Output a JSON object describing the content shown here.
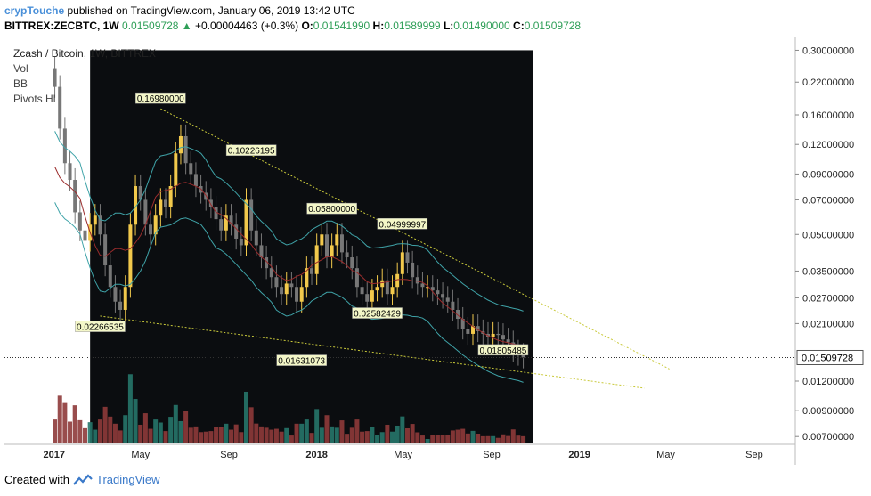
{
  "header": {
    "user": "crypTouche",
    "published": "published on TradingView.com, January 06, 2019 13:42 UTC",
    "symbol": "BITTREX:ZECBTC, 1W",
    "last": "0.01509728",
    "change_arrow": "▲",
    "change": "+0.00004463 (+0.3%)",
    "ohlc": [
      {
        "k": "O:",
        "v": "0.01541990"
      },
      {
        "k": "H:",
        "v": "0.01589999"
      },
      {
        "k": "L:",
        "v": "0.01490000"
      },
      {
        "k": "C:",
        "v": "0.01509728"
      }
    ]
  },
  "legend": {
    "title": "Zcash / Bitcoin, 1W, BITTREX",
    "items": [
      "Vol",
      "BB",
      "Pivots HL"
    ]
  },
  "footer": {
    "created": "Created with",
    "brand": "TradingView"
  },
  "colors": {
    "up": "#f2c94c",
    "down": "#777777",
    "vol_up": "#26756a",
    "vol_down": "#8e3a3a",
    "bb_upper": "#3fa3a8",
    "bb_mid": "#9b2c2c",
    "trend": "#c9c93a",
    "bg_dark": "#000000"
  },
  "chart_data": {
    "type": "candlestick",
    "y_scale": "log",
    "y_ticks": [
      "0.30000000",
      "0.22000000",
      "0.16000000",
      "0.12000000",
      "0.09000000",
      "0.07000000",
      "0.05000000",
      "0.03500000",
      "0.02700000",
      "0.02100000",
      "0.01200000",
      "0.00900000",
      "0.00700000"
    ],
    "y_tick_values": [
      0.3,
      0.22,
      0.16,
      0.12,
      0.09,
      0.07,
      0.05,
      0.035,
      0.027,
      0.021,
      0.012,
      0.009,
      0.007
    ],
    "ylim": [
      0.0066,
      0.34
    ],
    "x_ticks": [
      "2017",
      "May",
      "Sep",
      "2018",
      "May",
      "Sep",
      "2019",
      "May",
      "Sep"
    ],
    "x_tick_dates": [
      "2017-01-01",
      "2017-05-01",
      "2017-09-01",
      "2018-01-01",
      "2018-05-01",
      "2018-09-01",
      "2019-01-01",
      "2019-05-01",
      "2019-09-01"
    ],
    "x_range": [
      "2016-10-24",
      "2019-10-28"
    ],
    "last_price": {
      "value": 0.01509728,
      "label": "0.01509728"
    },
    "pivots": [
      {
        "label": "0.16980000",
        "date": "2017-05-29",
        "value": 0.1698,
        "kind": "high"
      },
      {
        "label": "0.10226195",
        "date": "2017-10-02",
        "value": 0.10226195,
        "kind": "high"
      },
      {
        "label": "0.05800000",
        "date": "2018-01-22",
        "value": 0.058,
        "kind": "high"
      },
      {
        "label": "0.04999997",
        "date": "2018-04-30",
        "value": 0.04999997,
        "kind": "high"
      },
      {
        "label": "0.02266535",
        "date": "2017-03-06",
        "value": 0.02266535,
        "kind": "low"
      },
      {
        "label": "0.01631073",
        "date": "2017-12-11",
        "value": 0.01631073,
        "kind": "low"
      },
      {
        "label": "0.02582429",
        "date": "2018-03-26",
        "value": 0.02582429,
        "kind": "low"
      },
      {
        "label": "0.01805485",
        "date": "2018-09-17",
        "value": 0.01805485,
        "kind": "low"
      }
    ],
    "closes": [
      0.21,
      0.14,
      0.1,
      0.085,
      0.062,
      0.052,
      0.047,
      0.055,
      0.06,
      0.05,
      0.037,
      0.03,
      0.026,
      0.024,
      0.03,
      0.055,
      0.08,
      0.07,
      0.055,
      0.05,
      0.06,
      0.07,
      0.065,
      0.08,
      0.11,
      0.13,
      0.1,
      0.09,
      0.08,
      0.075,
      0.07,
      0.065,
      0.058,
      0.052,
      0.06,
      0.055,
      0.048,
      0.045,
      0.07,
      0.052,
      0.045,
      0.04,
      0.036,
      0.033,
      0.03,
      0.028,
      0.031,
      0.03,
      0.026,
      0.03,
      0.036,
      0.034,
      0.045,
      0.05,
      0.04,
      0.045,
      0.05,
      0.042,
      0.04,
      0.036,
      0.03,
      0.028,
      0.026,
      0.029,
      0.03,
      0.032,
      0.028,
      0.03,
      0.034,
      0.042,
      0.038,
      0.033,
      0.031,
      0.03,
      0.03,
      0.029,
      0.028,
      0.027,
      0.026,
      0.024,
      0.022,
      0.02,
      0.019,
      0.0205,
      0.0195,
      0.019,
      0.0185,
      0.019,
      0.0188,
      0.018,
      0.0175,
      0.016,
      0.0155,
      0.0151
    ]
  }
}
